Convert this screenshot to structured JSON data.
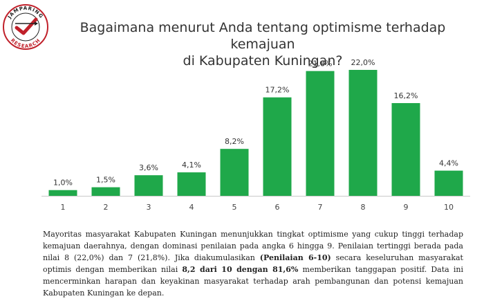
{
  "logo": {
    "text_top": "JAMPARING",
    "text_bottom": "RESEARCH"
  },
  "chart_data": {
    "type": "bar",
    "title_line1": "Bagaimana menurut Anda tentang optimisme terhadap kemajuan",
    "title_line2": "di Kabupaten Kuningan?",
    "categories": [
      "1",
      "2",
      "3",
      "4",
      "5",
      "6",
      "7",
      "8",
      "9",
      "10"
    ],
    "values": [
      1.0,
      1.5,
      3.6,
      4.1,
      8.2,
      17.2,
      21.8,
      22.0,
      16.2,
      4.4
    ],
    "value_labels": [
      "1,0%",
      "1,5%",
      "3,6%",
      "4,1%",
      "8,2%",
      "17,2%",
      "21,8%",
      "22,0%",
      "16,2%",
      "4,4%"
    ],
    "bar_color": "#1fa84a",
    "ylim": [
      0,
      22
    ],
    "grid": false,
    "legend": "none"
  },
  "description": {
    "p1": "Mayoritas masyarakat Kabupaten Kuningan menunjukkan tingkat optimisme yang cukup tinggi terhadap kemajuan daerahnya, dengan dominasi penilaian pada angka 6 hingga 9. Penilaian tertinggi berada pada nilai 8 (22,0%) dan 7 (21,8%). Jika diakumulasikan ",
    "b1": "(Penilaian 6-10)",
    "p2": " secara keseluruhan masyarakat optimis dengan memberikan nilai ",
    "b2": "8,2 dari 10 dengan 81,6%",
    "p3": " memberikan tanggapan positif.  Data ini mencerminkan harapan dan keyakinan masyarakat terhadap arah pembangunan dan potensi kemajuan Kabupaten Kuningan ke depan."
  }
}
